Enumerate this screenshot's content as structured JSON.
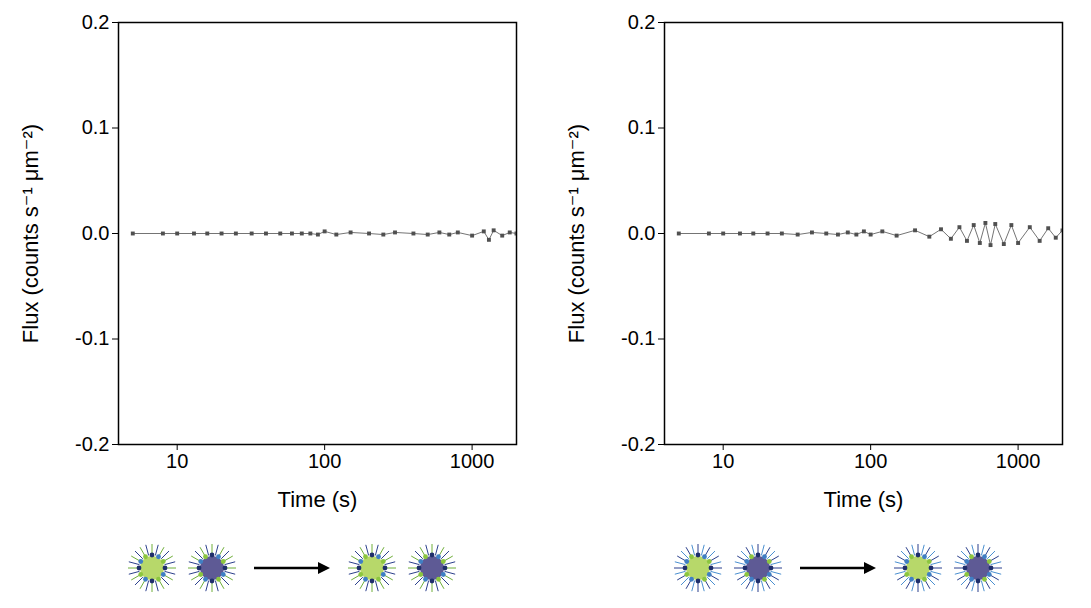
{
  "chart_data": [
    {
      "type": "line",
      "marker": "square",
      "line_style": "solid",
      "color": "#505050",
      "x_label": "Time (s)",
      "y_label": "Flux (counts s⁻¹ μm⁻²)",
      "log": "x",
      "x": [
        5,
        8,
        10,
        13,
        16,
        20,
        25,
        32,
        40,
        50,
        60,
        70,
        80,
        90,
        100,
        120,
        150,
        200,
        250,
        300,
        400,
        500,
        600,
        700,
        800,
        1000,
        1200,
        1300,
        1400,
        1600,
        1800,
        2000
      ],
      "values": [
        0.0,
        0.0,
        0.0,
        0.0,
        0.0,
        0.0,
        0.0,
        0.0,
        0.0,
        0.0,
        0.0,
        0.0,
        0.0,
        -0.001,
        0.002,
        -0.001,
        0.001,
        0.0,
        -0.001,
        0.001,
        0.0,
        -0.001,
        0.001,
        -0.001,
        0.001,
        -0.002,
        0.002,
        -0.006,
        0.003,
        -0.002,
        0.001,
        0.0
      ],
      "xlim": [
        4,
        2000
      ],
      "xticks": [
        10,
        100,
        1000
      ],
      "ylim": [
        -0.2,
        0.2
      ],
      "yticks": [
        -0.2,
        -0.1,
        {
          "value": 0,
          "label": "0.0"
        },
        0.1,
        0.2
      ]
    },
    {
      "type": "line",
      "marker": "square",
      "line_style": "solid",
      "color": "#505050",
      "x_label": "Time (s)",
      "y_label": "Flux (counts s⁻¹ μm⁻²)",
      "log": "x",
      "x": [
        5,
        8,
        10,
        13,
        16,
        20,
        25,
        32,
        40,
        50,
        60,
        70,
        80,
        90,
        100,
        120,
        150,
        200,
        250,
        300,
        350,
        400,
        450,
        500,
        550,
        600,
        650,
        700,
        800,
        900,
        1000,
        1200,
        1400,
        1600,
        1800,
        2000
      ],
      "values": [
        0.0,
        0.0,
        0.0,
        0.0,
        0.0,
        0.0,
        0.0,
        -0.001,
        0.001,
        0.0,
        -0.001,
        0.001,
        -0.001,
        0.002,
        -0.001,
        0.002,
        -0.002,
        0.003,
        -0.003,
        0.004,
        -0.005,
        0.006,
        -0.007,
        0.008,
        -0.009,
        0.01,
        -0.011,
        0.009,
        -0.01,
        0.008,
        -0.009,
        0.006,
        -0.007,
        0.005,
        -0.004,
        0.003
      ],
      "xlim": [
        4,
        2000
      ],
      "xticks": [
        10,
        100,
        1000
      ],
      "ylim": [
        -0.2,
        0.2
      ],
      "yticks": [
        -0.2,
        -0.1,
        {
          "value": 0,
          "label": "0.0"
        },
        0.1,
        0.2
      ]
    }
  ]
}
